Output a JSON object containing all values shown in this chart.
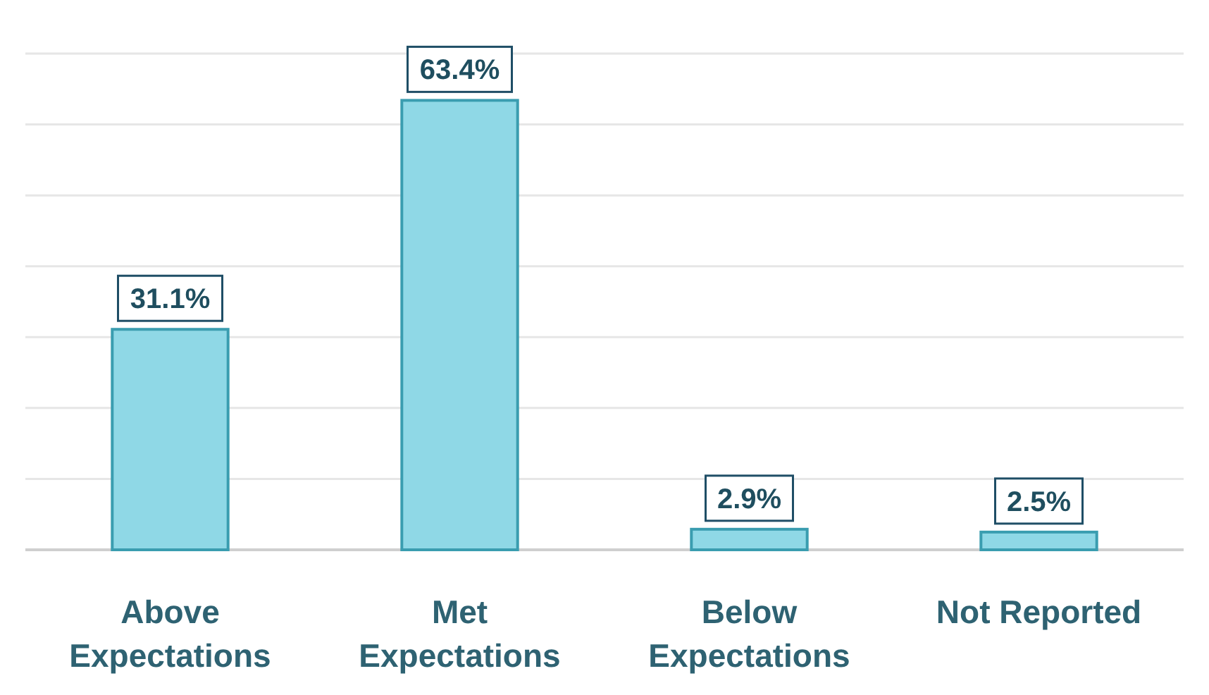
{
  "chart_data": {
    "type": "bar",
    "categories": [
      "Above Expectations",
      "Met Expectations",
      "Below Expectations",
      "Not Reported"
    ],
    "values": [
      31.1,
      63.4,
      2.9,
      2.5
    ],
    "value_labels": [
      "31.1%",
      "63.4%",
      "2.9%",
      "2.5%"
    ],
    "color": "#8fd8e6",
    "ylim": [
      0,
      70
    ],
    "yticks": [
      {
        "value": 0,
        "label": null
      },
      {
        "value": 10,
        "label": null
      },
      {
        "value": 20,
        "label": null
      },
      {
        "value": 30,
        "label": null
      },
      {
        "value": 40,
        "label": null
      },
      {
        "value": 50,
        "label": null
      },
      {
        "value": 60,
        "label": null
      },
      {
        "value": 70,
        "label": null
      }
    ],
    "grid": "y",
    "tick_labels": "x"
  }
}
